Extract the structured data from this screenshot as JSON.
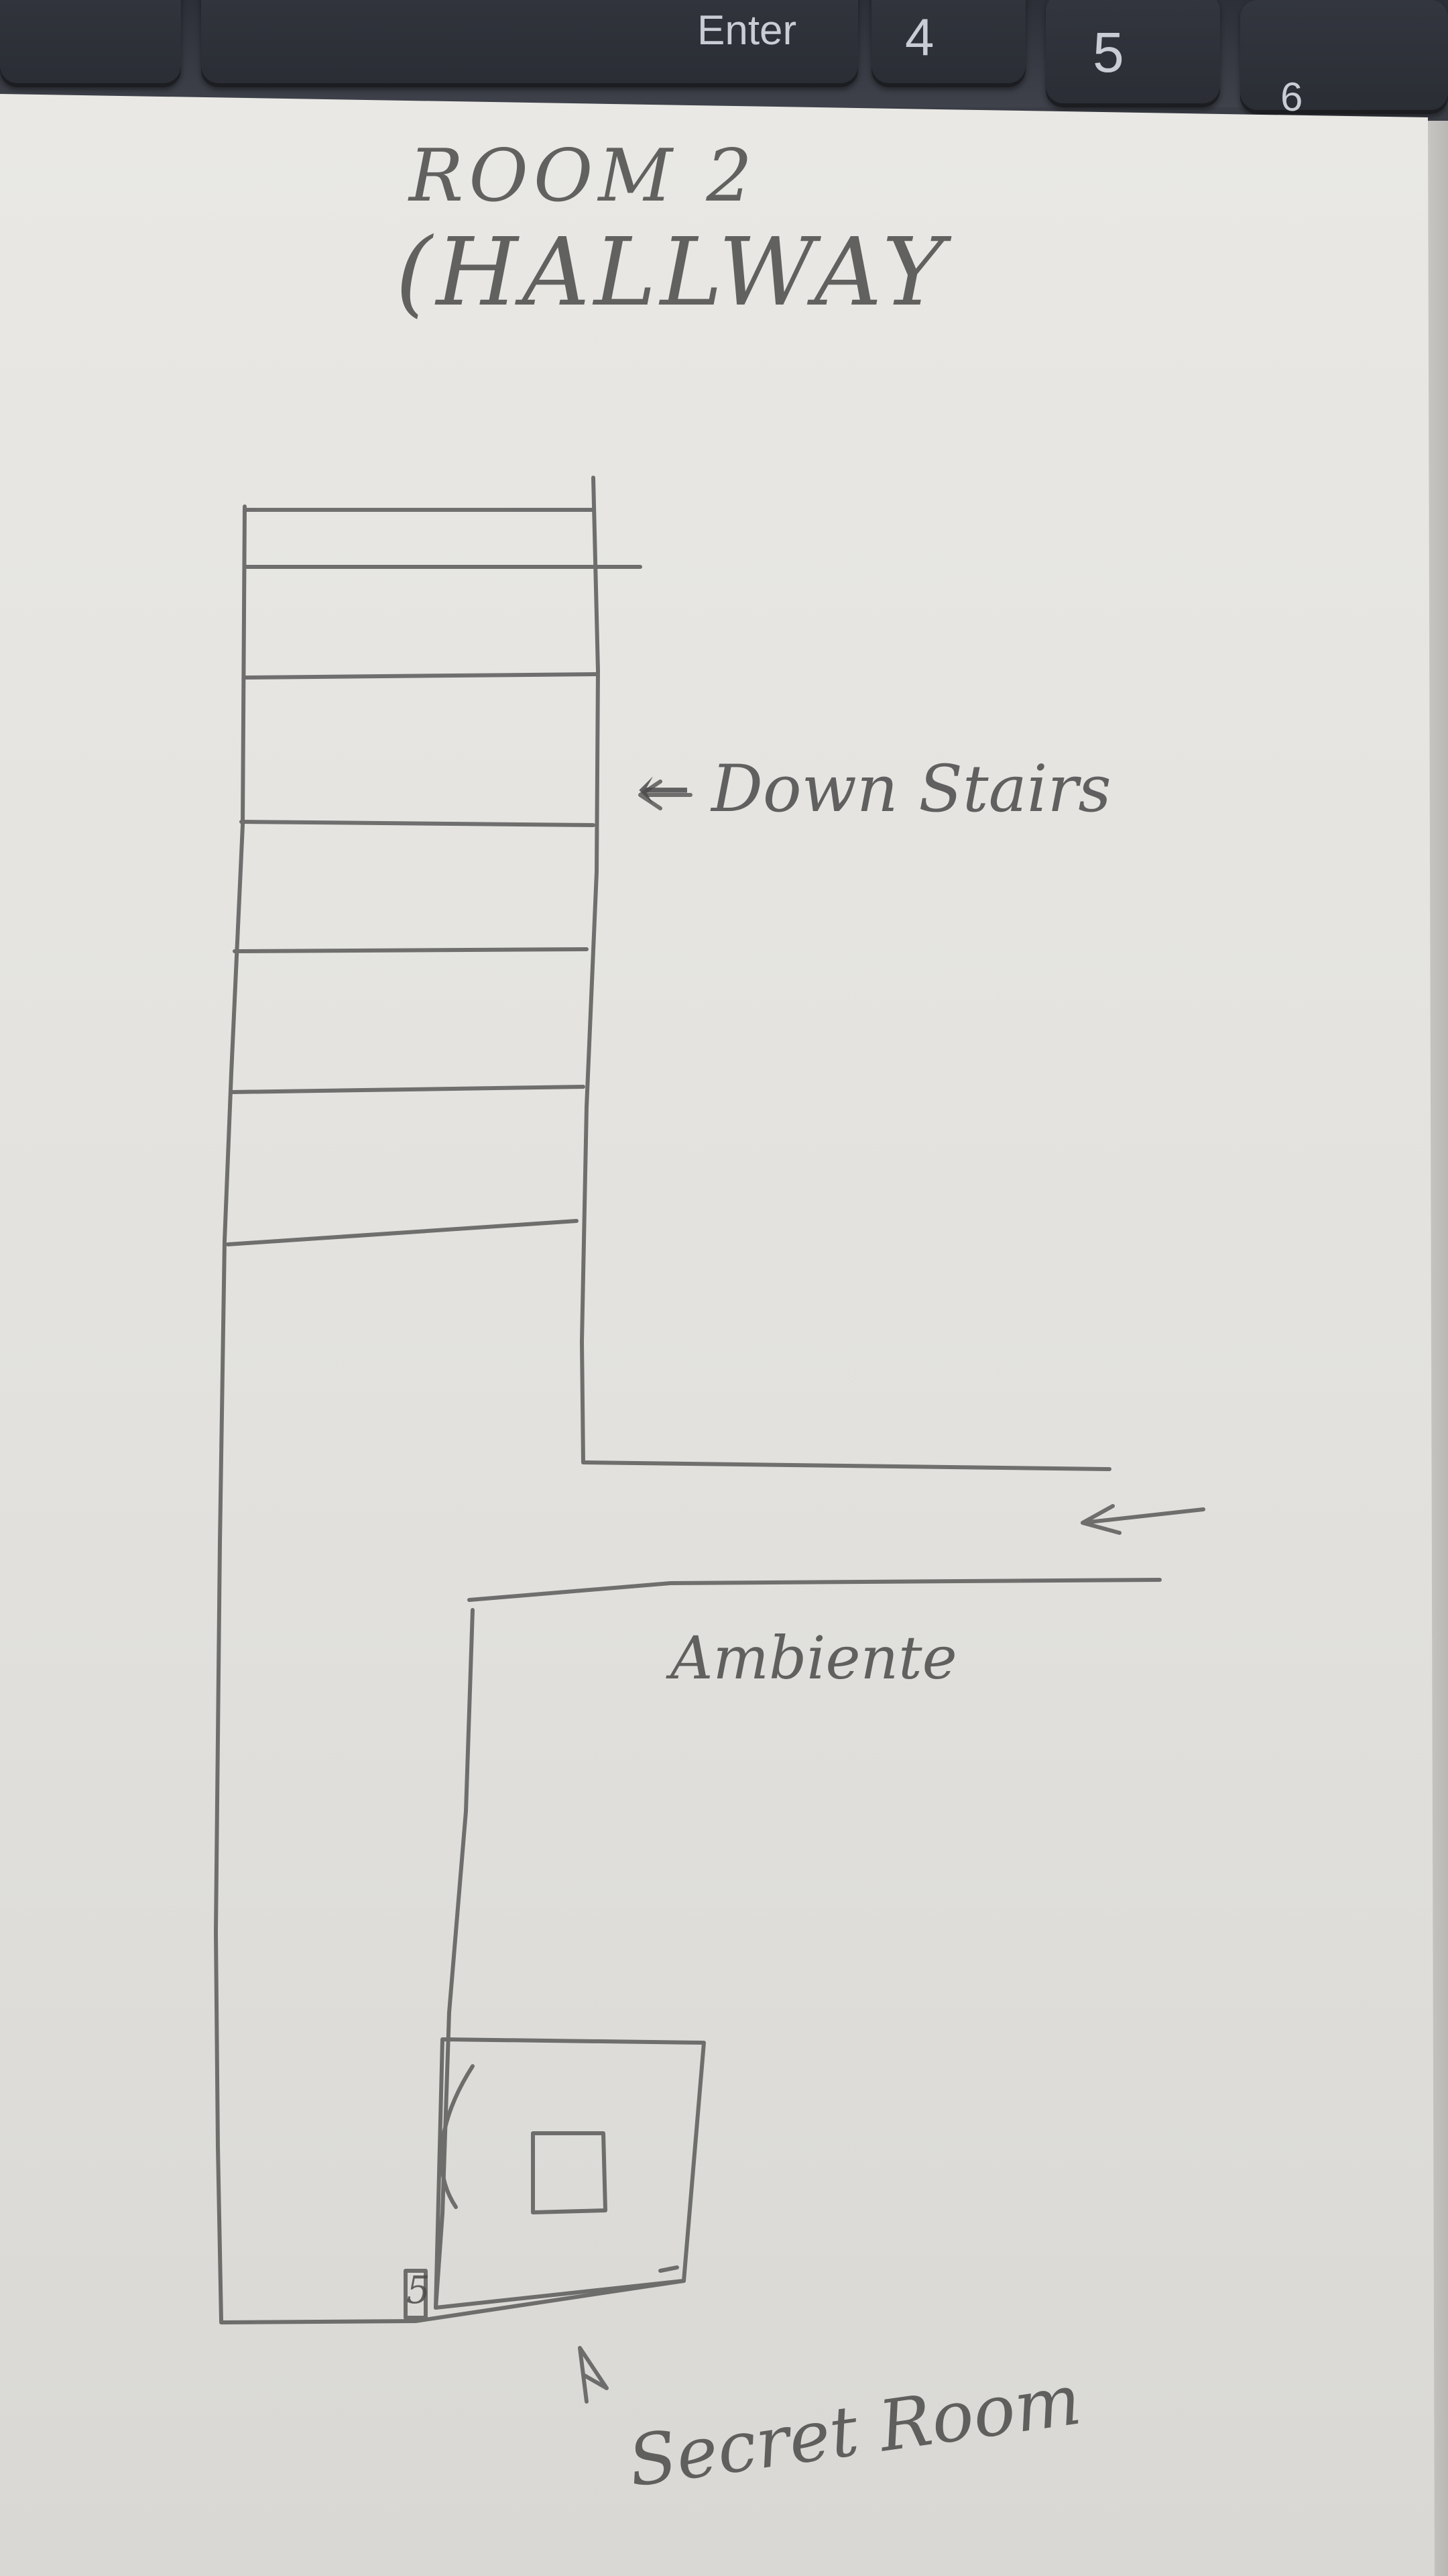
{
  "keyboard": {
    "keys": [
      {
        "label": ""
      },
      {
        "label": "Enter"
      },
      {
        "label": "4"
      },
      {
        "label": "5"
      },
      {
        "label": "6"
      }
    ]
  },
  "sketch": {
    "title_line1": "ROOM 2",
    "title_line2": "(HALLWAY",
    "label_stairs": "← Down Stairs",
    "label_ambient": "Ambiente",
    "label_5": "5",
    "label_secret": "Secret Room"
  },
  "colors": {
    "pencil": "#555555",
    "paper": "#e6e5e1",
    "keyboard": "#2c2f37"
  }
}
